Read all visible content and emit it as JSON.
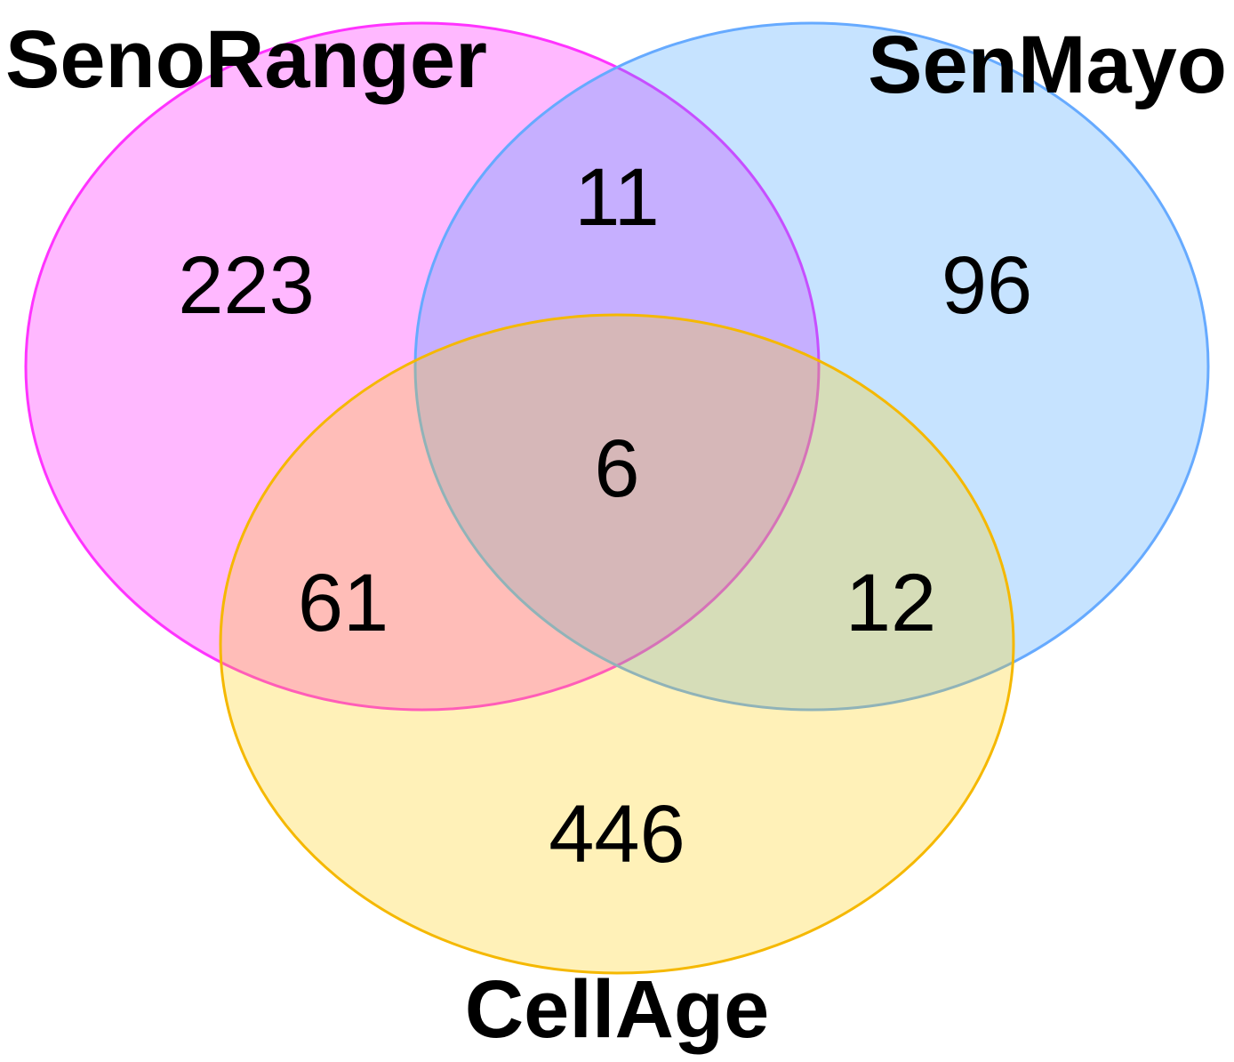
{
  "sets": [
    {
      "name": "SenoRanger",
      "fill": "#ff00ff",
      "stroke": "#ff33ff"
    },
    {
      "name": "SenMayo",
      "fill": "#3399ff",
      "stroke": "#66aaff"
    },
    {
      "name": "CellAge",
      "fill": "#ffcc00",
      "stroke": "#f5b800"
    }
  ],
  "regions": {
    "senoranger_only": "223",
    "senmayo_only": "96",
    "cellage_only": "446",
    "senoranger_senmayo": "11",
    "senoranger_cellage": "61",
    "senmayo_cellage": "12",
    "all_three": "6"
  },
  "fill_opacity": 0.28
}
